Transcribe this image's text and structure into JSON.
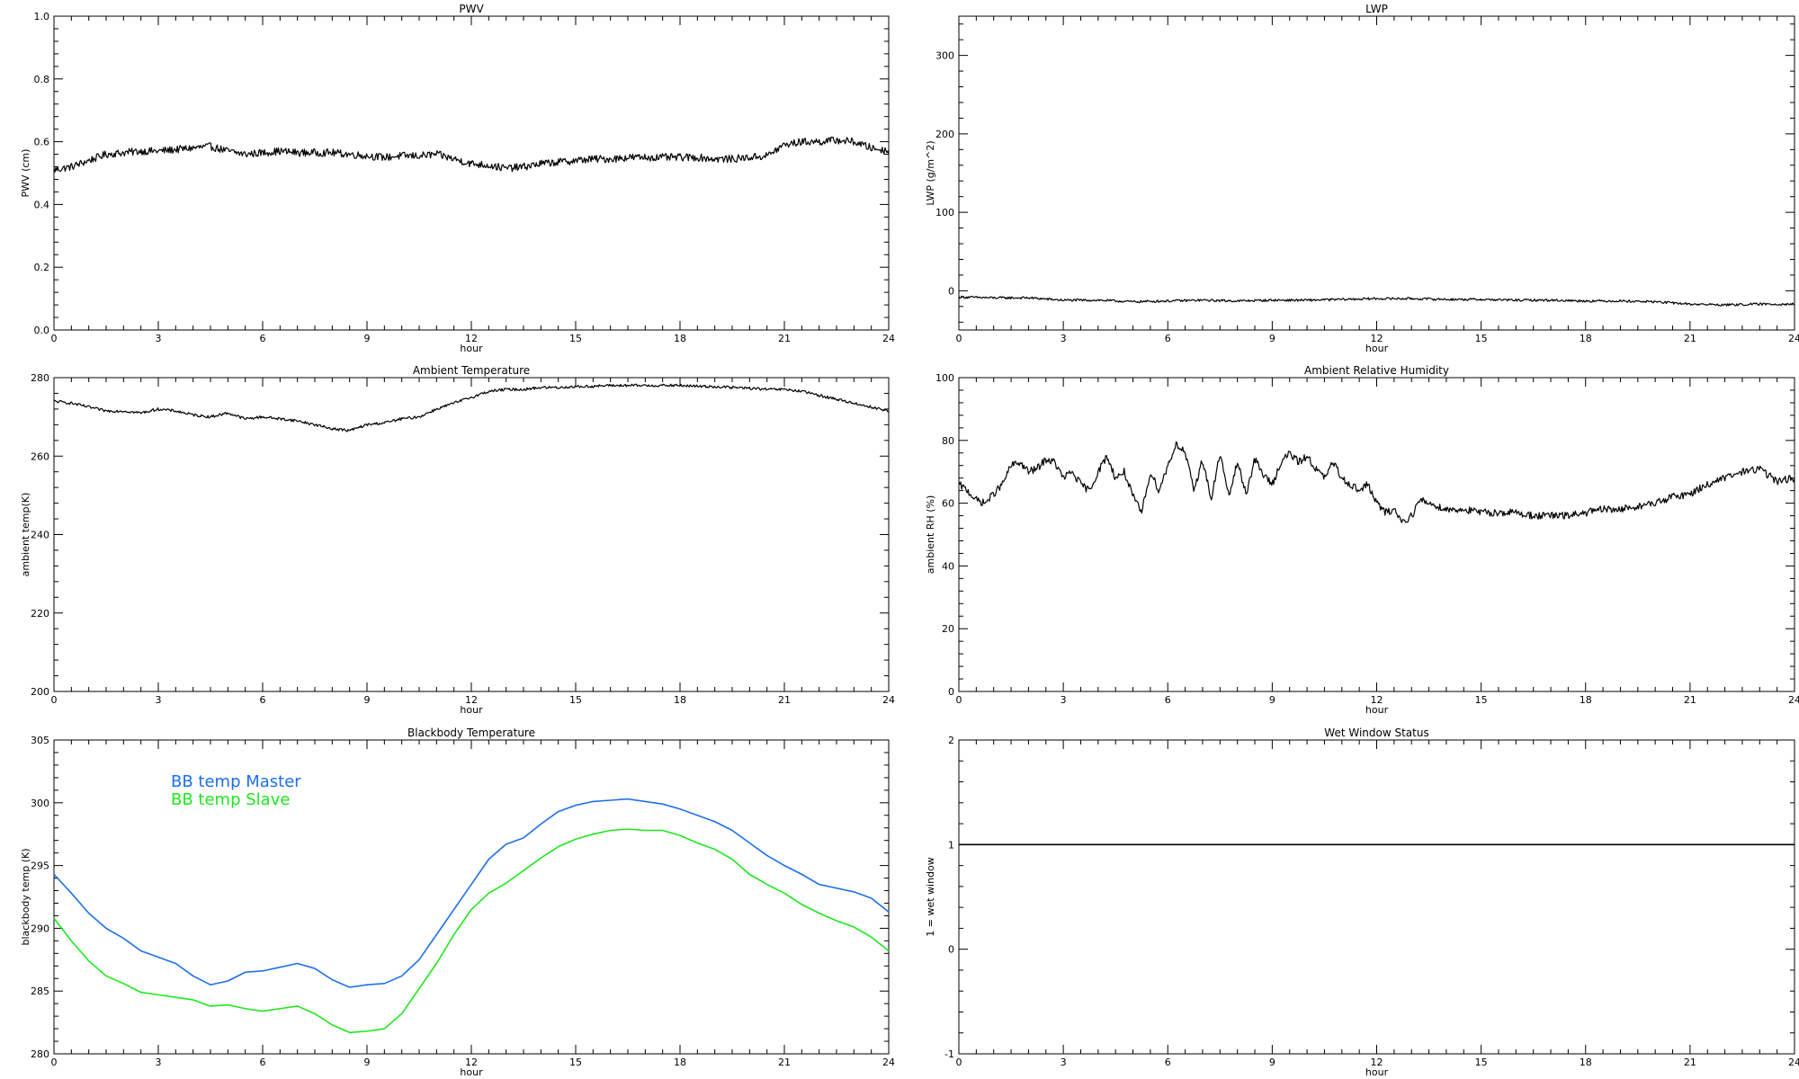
{
  "chart_data": [
    {
      "type": "line",
      "title": "PWV",
      "xlabel": "hour",
      "ylabel": "PWV (cm)",
      "xlim": [
        0,
        24
      ],
      "ylim": [
        0.0,
        1.0
      ],
      "x_ticks": [
        0,
        3,
        6,
        9,
        12,
        15,
        18,
        21,
        24
      ],
      "y_ticks": [
        "0.0",
        "0.2",
        "0.4",
        "0.6",
        "0.8",
        "1.0"
      ],
      "series": [
        {
          "color": "#000000",
          "noise": 0.012,
          "x": [
            0,
            0.5,
            1,
            1.5,
            2,
            2.5,
            3,
            3.5,
            4,
            4.5,
            5,
            5.5,
            6,
            6.5,
            7,
            7.5,
            8,
            8.5,
            9,
            9.5,
            10,
            10.5,
            11,
            11.5,
            12,
            12.5,
            13,
            13.5,
            14,
            14.5,
            15,
            15.5,
            16,
            16.5,
            17,
            17.5,
            18,
            18.5,
            19,
            19.5,
            20,
            20.5,
            21,
            21.5,
            22,
            22.5,
            23,
            23.5,
            24
          ],
          "y": [
            0.51,
            0.52,
            0.54,
            0.56,
            0.565,
            0.57,
            0.57,
            0.575,
            0.58,
            0.585,
            0.57,
            0.56,
            0.565,
            0.57,
            0.565,
            0.565,
            0.565,
            0.56,
            0.555,
            0.55,
            0.555,
            0.555,
            0.56,
            0.545,
            0.53,
            0.525,
            0.515,
            0.52,
            0.53,
            0.535,
            0.54,
            0.545,
            0.545,
            0.55,
            0.55,
            0.55,
            0.55,
            0.55,
            0.545,
            0.545,
            0.55,
            0.555,
            0.59,
            0.6,
            0.6,
            0.605,
            0.6,
            0.58,
            0.57
          ]
        }
      ]
    },
    {
      "type": "line",
      "title": "LWP",
      "xlabel": "hour",
      "ylabel": "LWP (g/m^2)",
      "xlim": [
        0,
        24
      ],
      "ylim": [
        -50,
        350
      ],
      "x_ticks": [
        0,
        3,
        6,
        9,
        12,
        15,
        18,
        21,
        24
      ],
      "y_ticks": [
        "0",
        "100",
        "200",
        "300"
      ],
      "series": [
        {
          "color": "#000000",
          "noise": 1.5,
          "x": [
            0,
            1,
            2,
            3,
            4,
            5,
            6,
            7,
            8,
            9,
            10,
            11,
            12,
            13,
            14,
            15,
            16,
            17,
            18,
            19,
            20,
            21,
            22,
            23,
            24
          ],
          "y": [
            -8,
            -9,
            -9,
            -12,
            -12,
            -14,
            -13,
            -12,
            -13,
            -12,
            -12,
            -11,
            -10,
            -10,
            -11,
            -11,
            -12,
            -12,
            -13,
            -13,
            -14,
            -17,
            -18,
            -17,
            -17
          ]
        }
      ]
    },
    {
      "type": "line",
      "title": "Ambient Temperature",
      "xlabel": "hour",
      "ylabel": "ambient temp(K)",
      "xlim": [
        0,
        24
      ],
      "ylim": [
        200,
        280
      ],
      "x_ticks": [
        0,
        3,
        6,
        9,
        12,
        15,
        18,
        21,
        24
      ],
      "y_ticks": [
        "200",
        "220",
        "240",
        "260",
        "280"
      ],
      "series": [
        {
          "color": "#000000",
          "noise": 0.35,
          "x": [
            0,
            0.5,
            1,
            1.5,
            2,
            2.5,
            3,
            3.5,
            4,
            4.5,
            5,
            5.5,
            6,
            6.5,
            7,
            7.5,
            8,
            8.5,
            9,
            9.5,
            10,
            10.5,
            11,
            11.5,
            12,
            12.5,
            13,
            13.5,
            14,
            14.5,
            15,
            15.5,
            16,
            16.5,
            17,
            17.5,
            18,
            18.5,
            19,
            19.5,
            20,
            20.5,
            21,
            21.5,
            22,
            22.5,
            23,
            23.5,
            24
          ],
          "y": [
            274,
            273.5,
            272.5,
            271.5,
            271.5,
            271,
            272,
            271.5,
            270.5,
            270,
            271,
            269.5,
            270,
            269.5,
            269,
            268,
            267,
            266.5,
            268,
            268.5,
            269.5,
            270,
            272,
            273.5,
            275,
            276.5,
            277,
            277,
            277.5,
            277.5,
            277.7,
            277.8,
            278,
            278,
            278,
            278,
            278,
            277.8,
            277.7,
            277.5,
            277.3,
            277,
            277,
            276.5,
            275.5,
            274.5,
            273.5,
            272.5,
            271.5
          ]
        }
      ]
    },
    {
      "type": "line",
      "title": "Ambient Relative Humidity",
      "xlabel": "hour",
      "ylabel": "ambient RH (%)",
      "xlim": [
        0,
        24
      ],
      "ylim": [
        0,
        100
      ],
      "x_ticks": [
        0,
        3,
        6,
        9,
        12,
        15,
        18,
        21,
        24
      ],
      "y_ticks": [
        "0",
        "20",
        "40",
        "60",
        "80",
        "100"
      ],
      "series": [
        {
          "color": "#000000",
          "noise": 1.2,
          "x": [
            0,
            0.25,
            0.5,
            0.75,
            1,
            1.25,
            1.5,
            1.75,
            2,
            2.25,
            2.5,
            2.75,
            3,
            3.25,
            3.5,
            3.75,
            4,
            4.25,
            4.5,
            4.75,
            5,
            5.25,
            5.5,
            5.75,
            6,
            6.25,
            6.5,
            6.75,
            7,
            7.25,
            7.5,
            7.75,
            8,
            8.25,
            8.5,
            8.75,
            9,
            9.25,
            9.5,
            9.75,
            10,
            10.25,
            10.5,
            10.75,
            11,
            11.25,
            11.5,
            11.75,
            12,
            12.25,
            12.5,
            12.75,
            13,
            13.25,
            13.5,
            14,
            14.5,
            15,
            15.5,
            16,
            16.5,
            17,
            17.5,
            18,
            18.5,
            19,
            19.5,
            20,
            20.5,
            21,
            21.5,
            22,
            22.5,
            23,
            23.5,
            24
          ],
          "y": [
            66,
            64,
            61,
            60,
            63,
            66,
            72,
            73,
            70,
            71,
            74,
            73,
            68,
            70,
            66,
            64,
            70,
            75,
            68,
            70,
            62,
            57,
            70,
            64,
            72,
            79,
            76,
            64,
            74,
            61,
            76,
            62,
            73,
            63,
            74,
            69,
            66,
            73,
            76,
            73,
            75,
            71,
            68,
            73,
            68,
            66,
            64,
            66,
            60,
            57,
            58,
            54,
            56,
            61,
            60,
            58,
            58,
            57,
            57,
            57,
            56,
            56,
            56,
            57,
            58,
            58,
            59,
            60,
            62,
            63,
            66,
            68,
            70,
            71,
            67,
            68
          ]
        }
      ]
    },
    {
      "type": "line",
      "title": "Blackbody Temperature",
      "xlabel": "hour",
      "ylabel": "blackbody temp (K)",
      "xlim": [
        0,
        24
      ],
      "ylim": [
        280,
        305
      ],
      "x_ticks": [
        0,
        3,
        6,
        9,
        12,
        15,
        18,
        21,
        24
      ],
      "y_ticks": [
        "280",
        "285",
        "290",
        "295",
        "300",
        "305"
      ],
      "legend": [
        {
          "label": "BB temp Master",
          "color": "#1e6fe8"
        },
        {
          "label": "BB temp Slave",
          "color": "#1ee81e"
        }
      ],
      "series": [
        {
          "name": "BB temp Master",
          "color": "#1e6fe8",
          "noise": 0,
          "x": [
            0,
            0.5,
            1,
            1.5,
            2,
            2.5,
            3,
            3.5,
            4,
            4.5,
            5,
            5.5,
            6,
            6.5,
            7,
            7.5,
            8,
            8.5,
            9,
            9.5,
            10,
            10.5,
            11,
            11.5,
            12,
            12.5,
            13,
            13.5,
            14,
            14.5,
            15,
            15.5,
            16,
            16.5,
            17,
            17.5,
            18,
            18.5,
            19,
            19.5,
            20,
            20.5,
            21,
            21.5,
            22,
            22.5,
            23,
            23.5,
            24
          ],
          "y": [
            294.3,
            292.8,
            291.2,
            290,
            289.2,
            288.2,
            287.7,
            287.2,
            286.2,
            285.5,
            285.8,
            286.5,
            286.6,
            286.9,
            287.2,
            286.8,
            285.9,
            285.3,
            285.5,
            285.6,
            286.2,
            287.5,
            289.5,
            291.5,
            293.5,
            295.5,
            296.7,
            297.2,
            298.3,
            299.3,
            299.8,
            300.1,
            300.2,
            300.3,
            300.1,
            299.9,
            299.5,
            299,
            298.5,
            297.8,
            296.8,
            295.8,
            295,
            294.3,
            293.5,
            293.2,
            292.9,
            292.4,
            291.3
          ]
        },
        {
          "name": "BB temp Slave",
          "color": "#1ee81e",
          "noise": 0,
          "x": [
            0,
            0.5,
            1,
            1.5,
            2,
            2.5,
            3,
            3.5,
            4,
            4.5,
            5,
            5.5,
            6,
            6.5,
            7,
            7.5,
            8,
            8.5,
            9,
            9.5,
            10,
            10.5,
            11,
            11.5,
            12,
            12.5,
            13,
            13.5,
            14,
            14.5,
            15,
            15.5,
            16,
            16.5,
            17,
            17.5,
            18,
            18.5,
            19,
            19.5,
            20,
            20.5,
            21,
            21.5,
            22,
            22.5,
            23,
            23.5,
            24
          ],
          "y": [
            290.8,
            289,
            287.4,
            286.2,
            285.6,
            284.9,
            284.7,
            284.5,
            284.3,
            283.8,
            283.9,
            283.6,
            283.4,
            283.6,
            283.8,
            283.2,
            282.3,
            281.7,
            281.8,
            282,
            283.2,
            285.2,
            287.2,
            289.5,
            291.5,
            292.8,
            293.6,
            294.6,
            295.6,
            296.5,
            297.1,
            297.5,
            297.8,
            297.9,
            297.8,
            297.8,
            297.4,
            296.8,
            296.3,
            295.5,
            294.3,
            293.5,
            292.8,
            291.9,
            291.2,
            290.6,
            290.1,
            289.3,
            288.2
          ]
        }
      ]
    },
    {
      "type": "line",
      "title": "Wet Window Status",
      "xlabel": "hour",
      "ylabel": "1 = wet window",
      "xlim": [
        0,
        24
      ],
      "ylim": [
        -1,
        2
      ],
      "x_ticks": [
        0,
        3,
        6,
        9,
        12,
        15,
        18,
        21,
        24
      ],
      "y_ticks": [
        "-1",
        "0",
        "1",
        "2"
      ],
      "series": [
        {
          "color": "#000000",
          "noise": 0,
          "x": [
            0,
            24
          ],
          "y": [
            1,
            1
          ]
        }
      ]
    }
  ]
}
